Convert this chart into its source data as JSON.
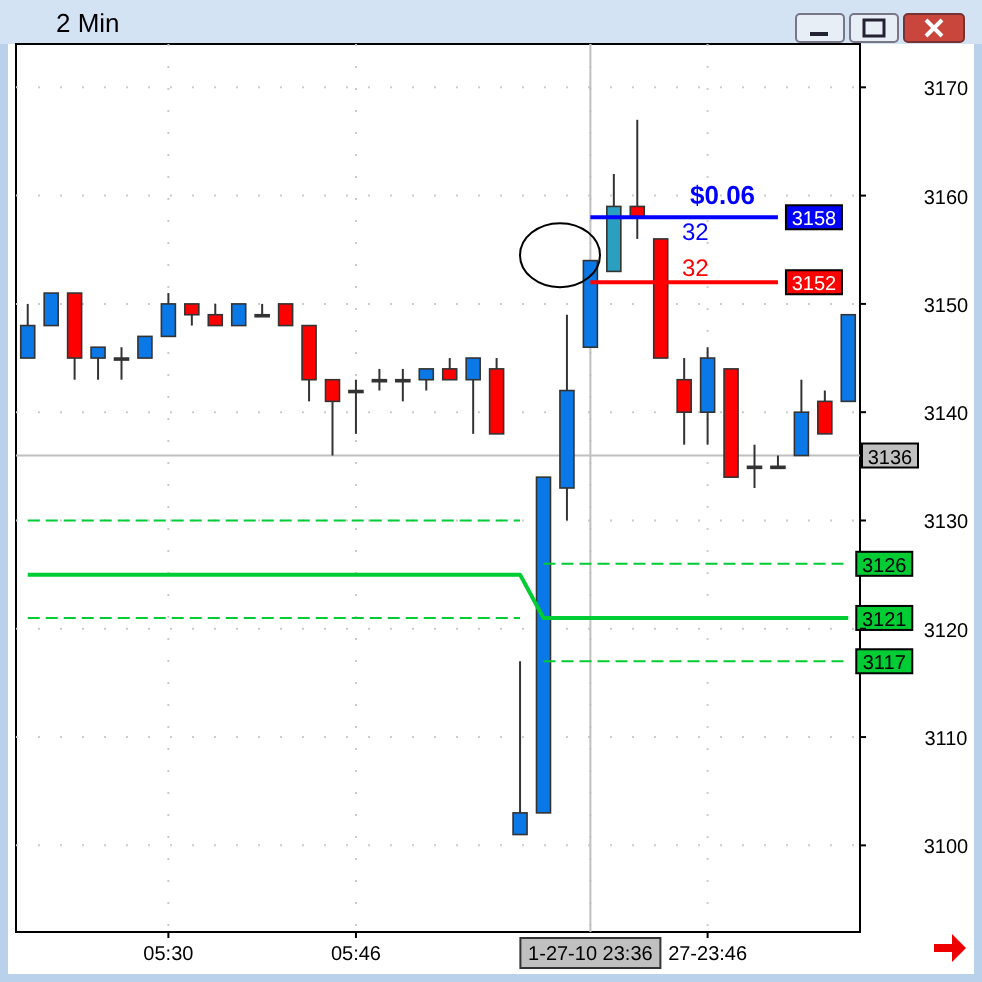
{
  "chart_data": {
    "type": "candlestick",
    "title": "2 Min",
    "categories": [
      null,
      null,
      null,
      null,
      null,
      null,
      "05:30",
      null,
      null,
      null,
      null,
      null,
      null,
      null,
      "05:46",
      null,
      null,
      null,
      null,
      null,
      null,
      null,
      null,
      null,
      "1-27-10 23:36",
      null,
      null,
      null,
      null,
      "27-23:46",
      null,
      null,
      null,
      null,
      null,
      null
    ],
    "ohlc": [
      [
        3145,
        3150,
        3145,
        3148
      ],
      [
        3148,
        3151,
        3148,
        3151
      ],
      [
        3151,
        3151,
        3143,
        3145
      ],
      [
        3145,
        3146,
        3143,
        3146
      ],
      [
        3145,
        3146,
        3143,
        3145
      ],
      [
        3145,
        3147,
        3145,
        3147
      ],
      [
        3147,
        3151,
        3147,
        3150
      ],
      [
        3150,
        3150,
        3148,
        3149
      ],
      [
        3149,
        3150,
        3148,
        3148
      ],
      [
        3148,
        3150,
        3148,
        3150
      ],
      [
        3149,
        3150,
        3149,
        3149
      ],
      [
        3150,
        3150,
        3148,
        3148
      ],
      [
        3148,
        3148,
        3141,
        3143
      ],
      [
        3143,
        3143,
        3136,
        3141
      ],
      [
        3142,
        3143,
        3138,
        3142
      ],
      [
        3143,
        3144,
        3142,
        3143
      ],
      [
        3143,
        3144,
        3141,
        3143
      ],
      [
        3143,
        3144,
        3142,
        3144
      ],
      [
        3144,
        3145,
        3143,
        3143
      ],
      [
        3143,
        3145,
        3138,
        3145
      ],
      [
        3144,
        3145,
        3138,
        3138
      ],
      [
        3101,
        3117,
        3101,
        3103
      ],
      [
        3103,
        3134,
        3103,
        3134
      ],
      [
        3133,
        3149,
        3130,
        3142
      ],
      [
        3146,
        3154,
        3146,
        3154
      ],
      [
        3153,
        3162,
        3153,
        3159
      ],
      [
        3159,
        3167,
        3156,
        3158
      ],
      [
        3156,
        3156,
        3145,
        3145
      ],
      [
        3143,
        3145,
        3137,
        3140
      ],
      [
        3140,
        3146,
        3137,
        3145
      ],
      [
        3144,
        3144,
        3134,
        3134
      ],
      [
        3135,
        3137,
        3133,
        3135
      ],
      [
        3135,
        3136,
        3135,
        3135
      ],
      [
        3136,
        3143,
        3136,
        3140
      ],
      [
        3141,
        3142,
        3138,
        3138
      ],
      [
        3141,
        3149,
        3141,
        3149
      ]
    ],
    "colors": [
      "#0a78e6",
      "#0a78e6",
      "#ff0000",
      "#0a78e6",
      "#333333",
      "#0a78e6",
      "#0a78e6",
      "#ff0000",
      "#ff0000",
      "#0a78e6",
      "#333333",
      "#ff0000",
      "#ff0000",
      "#ff0000",
      "#333333",
      "#333333",
      "#333333",
      "#0a78e6",
      "#ff0000",
      "#0a78e6",
      "#ff0000",
      "#0a78e6",
      "#0a78e6",
      "#0a78e6",
      "#0a78e6",
      "#2a9fc0",
      "#ff0000",
      "#ff0000",
      "#ff0000",
      "#0a78e6",
      "#ff0000",
      "#333333",
      "#333333",
      "#0a78e6",
      "#ff0000",
      "#0a78e6"
    ],
    "series": [
      {
        "type": "line",
        "color": "#00cc33",
        "line_style": "dashed",
        "values": [
          3130,
          3130,
          3130,
          3130,
          3130,
          3130,
          3130,
          3130,
          3130,
          3130,
          3130,
          3130,
          3130,
          3130,
          3130,
          3130,
          3130,
          3130,
          3130,
          3130,
          3130,
          3130,
          null,
          null,
          null,
          null,
          null,
          null,
          null,
          null,
          null,
          null,
          null,
          null,
          null,
          null
        ]
      },
      {
        "type": "line",
        "color": "#00cc33",
        "line_style": "dashed",
        "values": [
          null,
          null,
          null,
          null,
          null,
          null,
          null,
          null,
          null,
          null,
          null,
          null,
          null,
          null,
          null,
          null,
          null,
          null,
          null,
          null,
          null,
          null,
          3126,
          3126,
          3126,
          3126,
          3126,
          3126,
          3126,
          3126,
          3126,
          3126,
          3126,
          3126,
          3126,
          3126
        ],
        "value_labels": [
          null,
          null,
          null,
          null,
          null,
          null,
          null,
          null,
          null,
          null,
          null,
          null,
          null,
          null,
          null,
          null,
          null,
          null,
          null,
          null,
          null,
          null,
          null,
          null,
          null,
          null,
          null,
          null,
          null,
          null,
          null,
          null,
          null,
          null,
          null,
          "3126"
        ]
      },
      {
        "type": "line",
        "color": "#00cc33",
        "line_style": "solid",
        "values": [
          3125,
          3125,
          3125,
          3125,
          3125,
          3125,
          3125,
          3125,
          3125,
          3125,
          3125,
          3125,
          3125,
          3125,
          3125,
          3125,
          3125,
          3125,
          3125,
          3125,
          3125,
          3125,
          3121,
          3121,
          3121,
          3121,
          3121,
          3121,
          3121,
          3121,
          3121,
          3121,
          3121,
          3121,
          3121,
          3121
        ],
        "value_labels": [
          null,
          null,
          null,
          null,
          null,
          null,
          null,
          null,
          null,
          null,
          null,
          null,
          null,
          null,
          null,
          null,
          null,
          null,
          null,
          null,
          null,
          null,
          null,
          null,
          null,
          null,
          null,
          null,
          null,
          null,
          null,
          null,
          null,
          null,
          null,
          "3121"
        ]
      },
      {
        "type": "line",
        "color": "#00cc33",
        "line_style": "dashed",
        "values": [
          3121,
          3121,
          3121,
          3121,
          3121,
          3121,
          3121,
          3121,
          3121,
          3121,
          3121,
          3121,
          3121,
          3121,
          3121,
          3121,
          3121,
          3121,
          3121,
          3121,
          3121,
          3121,
          null,
          null,
          null,
          null,
          null,
          null,
          null,
          null,
          null,
          null,
          null,
          null,
          null,
          null
        ]
      },
      {
        "type": "line",
        "color": "#00cc33",
        "line_style": "dashed",
        "values": [
          null,
          null,
          null,
          null,
          null,
          null,
          null,
          null,
          null,
          null,
          null,
          null,
          null,
          null,
          null,
          null,
          null,
          null,
          null,
          null,
          null,
          null,
          3117,
          3117,
          3117,
          3117,
          3117,
          3117,
          3117,
          3117,
          3117,
          3117,
          3117,
          3117,
          3117,
          3117
        ],
        "value_labels": [
          null,
          null,
          null,
          null,
          null,
          null,
          null,
          null,
          null,
          null,
          null,
          null,
          null,
          null,
          null,
          null,
          null,
          null,
          null,
          null,
          null,
          null,
          null,
          null,
          null,
          null,
          null,
          null,
          null,
          null,
          null,
          null,
          null,
          null,
          null,
          "3117"
        ]
      },
      {
        "type": "line",
        "color": "#0000ff",
        "line_style": "solid",
        "values": [
          null,
          null,
          null,
          null,
          null,
          null,
          null,
          null,
          null,
          null,
          null,
          null,
          null,
          null,
          null,
          null,
          null,
          null,
          null,
          null,
          null,
          null,
          null,
          null,
          3158,
          3158,
          3158,
          3158,
          3158,
          3158,
          3158,
          3158,
          3158,
          null,
          null,
          null
        ],
        "value_labels": [
          null,
          null,
          null,
          null,
          null,
          null,
          null,
          null,
          null,
          null,
          null,
          null,
          null,
          null,
          null,
          null,
          null,
          null,
          null,
          null,
          null,
          null,
          null,
          null,
          null,
          null,
          null,
          null,
          null,
          null,
          null,
          null,
          "3158",
          null,
          null,
          null
        ]
      },
      {
        "type": "line",
        "color": "#ff0000",
        "line_style": "solid",
        "values": [
          null,
          null,
          null,
          null,
          null,
          null,
          null,
          null,
          null,
          null,
          null,
          null,
          null,
          null,
          null,
          null,
          null,
          null,
          null,
          null,
          null,
          null,
          null,
          null,
          3152,
          3152,
          3152,
          3152,
          3152,
          3152,
          3152,
          3152,
          3152,
          null,
          null,
          null
        ],
        "value_labels": [
          null,
          null,
          null,
          null,
          null,
          null,
          null,
          null,
          null,
          null,
          null,
          null,
          null,
          null,
          null,
          null,
          null,
          null,
          null,
          null,
          null,
          null,
          null,
          null,
          null,
          null,
          null,
          null,
          null,
          null,
          null,
          null,
          "3152",
          null,
          null,
          null
        ]
      }
    ],
    "ylim": [
      3092,
      3174
    ],
    "yticks": [
      3100,
      3110,
      3120,
      3130,
      3140,
      3150,
      3160,
      3170
    ],
    "ref_lines": [
      {
        "axis": "y",
        "value": 3136,
        "label": "3136",
        "color": "#c0c0c0"
      },
      {
        "axis": "x",
        "value": "1-27-10 23:36",
        "color": "#c0c0c0"
      }
    ],
    "annotations": [
      "$0.06",
      "32",
      "32"
    ],
    "grid": true
  }
}
